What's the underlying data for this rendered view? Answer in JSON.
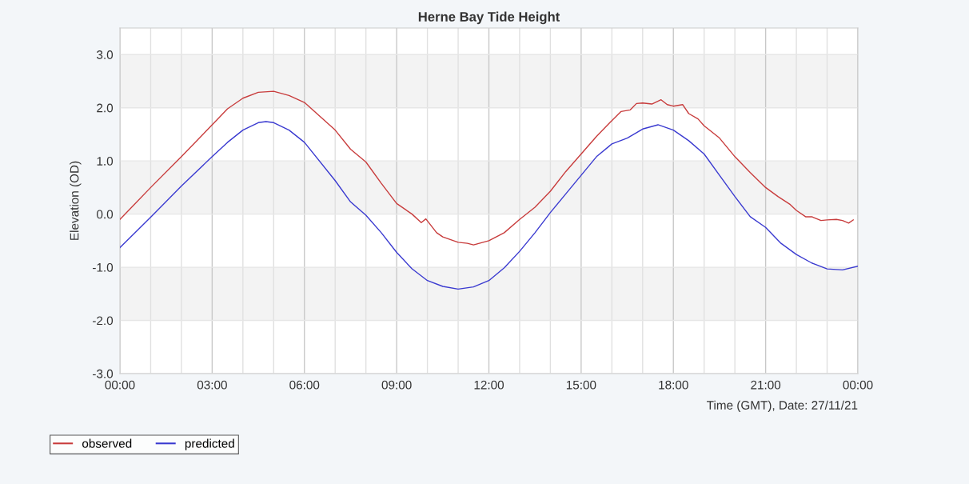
{
  "chart_data": {
    "type": "line",
    "title": "Herne Bay Tide Height",
    "xlabel": "Time (GMT), Date: 27/11/21",
    "ylabel": "Elevation (OD)",
    "series": [
      {
        "name": "observed",
        "color": "#c83c3c",
        "x": [
          0,
          1,
          2,
          3,
          3.5,
          4,
          4.5,
          5,
          5.5,
          6,
          7,
          7.5,
          8,
          8.5,
          9,
          9.5,
          9.8,
          9.95,
          10.3,
          10.5,
          11,
          11.3,
          11.5,
          12,
          12.5,
          13,
          13.5,
          14,
          14.5,
          15,
          15.5,
          16,
          16.3,
          16.6,
          16.8,
          17,
          17.3,
          17.6,
          17.8,
          18,
          18.3,
          18.5,
          18.8,
          19,
          19.5,
          20,
          20.5,
          21,
          21.4,
          21.8,
          22,
          22.3,
          22.5,
          22.8,
          23,
          23.3,
          23.5,
          23.7,
          23.85
        ],
        "values": [
          -0.1,
          0.5,
          1.08,
          1.68,
          1.98,
          2.18,
          2.29,
          2.31,
          2.23,
          2.1,
          1.58,
          1.22,
          0.98,
          0.58,
          0.2,
          0.0,
          -0.16,
          -0.09,
          -0.35,
          -0.43,
          -0.53,
          -0.55,
          -0.58,
          -0.5,
          -0.35,
          -0.1,
          0.13,
          0.43,
          0.8,
          1.13,
          1.46,
          1.76,
          1.93,
          1.96,
          2.08,
          2.09,
          2.07,
          2.15,
          2.06,
          2.03,
          2.06,
          1.89,
          1.79,
          1.66,
          1.43,
          1.08,
          0.78,
          0.5,
          0.33,
          0.18,
          0.07,
          -0.05,
          -0.05,
          -0.12,
          -0.11,
          -0.1,
          -0.12,
          -0.17,
          -0.11
        ]
      },
      {
        "name": "predicted",
        "color": "#3a3ad0",
        "x": [
          0,
          1,
          2,
          3,
          3.5,
          4,
          4.5,
          4.75,
          5,
          5.5,
          6,
          7,
          7.5,
          8,
          8.5,
          9,
          9.5,
          10,
          10.5,
          11,
          11.5,
          12,
          12.5,
          13,
          13.5,
          14,
          14.5,
          15,
          15.5,
          16,
          16.5,
          17,
          17.5,
          18,
          18.5,
          19,
          19.5,
          20,
          20.5,
          21,
          21.5,
          22,
          22.5,
          23,
          23.5,
          24
        ],
        "values": [
          -0.63,
          -0.06,
          0.53,
          1.08,
          1.35,
          1.58,
          1.72,
          1.74,
          1.72,
          1.58,
          1.35,
          0.63,
          0.23,
          -0.02,
          -0.35,
          -0.72,
          -1.03,
          -1.25,
          -1.36,
          -1.41,
          -1.37,
          -1.25,
          -1.01,
          -0.7,
          -0.35,
          0.03,
          0.38,
          0.73,
          1.08,
          1.32,
          1.43,
          1.6,
          1.68,
          1.58,
          1.38,
          1.13,
          0.73,
          0.33,
          -0.05,
          -0.25,
          -0.55,
          -0.76,
          -0.92,
          -1.03,
          -1.05,
          -0.98
        ]
      }
    ],
    "xlim": [
      0,
      24
    ],
    "xticks": [
      {
        "value": 0,
        "label": "00:00"
      },
      {
        "value": 1,
        "label": null
      },
      {
        "value": 2,
        "label": null
      },
      {
        "value": 3,
        "label": "03:00"
      },
      {
        "value": 4,
        "label": null
      },
      {
        "value": 5,
        "label": null
      },
      {
        "value": 6,
        "label": "06:00"
      },
      {
        "value": 7,
        "label": null
      },
      {
        "value": 8,
        "label": null
      },
      {
        "value": 9,
        "label": "09:00"
      },
      {
        "value": 10,
        "label": null
      },
      {
        "value": 11,
        "label": null
      },
      {
        "value": 12,
        "label": "12:00"
      },
      {
        "value": 13,
        "label": null
      },
      {
        "value": 14,
        "label": null
      },
      {
        "value": 15,
        "label": "15:00"
      },
      {
        "value": 16,
        "label": null
      },
      {
        "value": 17,
        "label": null
      },
      {
        "value": 18,
        "label": "18:00"
      },
      {
        "value": 19,
        "label": null
      },
      {
        "value": 20,
        "label": null
      },
      {
        "value": 21,
        "label": "21:00"
      },
      {
        "value": 22,
        "label": null
      },
      {
        "value": 23,
        "label": null
      },
      {
        "value": 24,
        "label": "00:00"
      }
    ],
    "ylim": [
      -3,
      3.5
    ],
    "yticks": [
      {
        "value": -3,
        "label": "-3.0"
      },
      {
        "value": -2,
        "label": "-2.0"
      },
      {
        "value": -1,
        "label": "-1.0"
      },
      {
        "value": 0,
        "label": "0.0"
      },
      {
        "value": 1,
        "label": "1.0"
      },
      {
        "value": 2,
        "label": "2.0"
      },
      {
        "value": 3,
        "label": "3.0"
      }
    ],
    "bands": [
      {
        "axis": "y",
        "from": 2,
        "to": 3,
        "color": "#f3f3f3"
      },
      {
        "axis": "y",
        "from": 0,
        "to": 1,
        "color": "#f3f3f3"
      },
      {
        "axis": "y",
        "from": -2,
        "to": -1,
        "color": "#f3f3f3"
      }
    ],
    "grid": true,
    "legend": "bottom left",
    "marker": "none",
    "line_style": "solid"
  }
}
